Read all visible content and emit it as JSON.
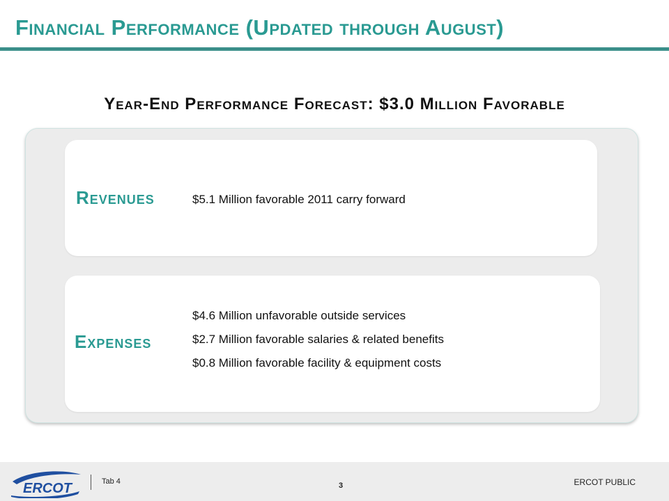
{
  "slide": {
    "title": "Financial Performance (Updated through August)",
    "subtitle": "Year-End Performance Forecast: $3.0 Million Favorable"
  },
  "sections": {
    "revenues": {
      "label": "Revenues",
      "items": [
        "$5.1 Million favorable 2011 carry forward"
      ]
    },
    "expenses": {
      "label": "Expenses",
      "items": [
        "$4.6 Million unfavorable outside services",
        "$2.7 Million favorable salaries & related benefits",
        "$0.8 Million favorable facility & equipment costs"
      ]
    }
  },
  "footer": {
    "logo_icon": "ercot-logo",
    "logo_text": "ERCOT",
    "tab_label": "Tab 4",
    "page_number": "3",
    "classification": "ERCOT PUBLIC"
  },
  "colors": {
    "accent": "#2a9a92",
    "rule": "#3b8f8a",
    "logo_blue": "#1f4fa0"
  }
}
